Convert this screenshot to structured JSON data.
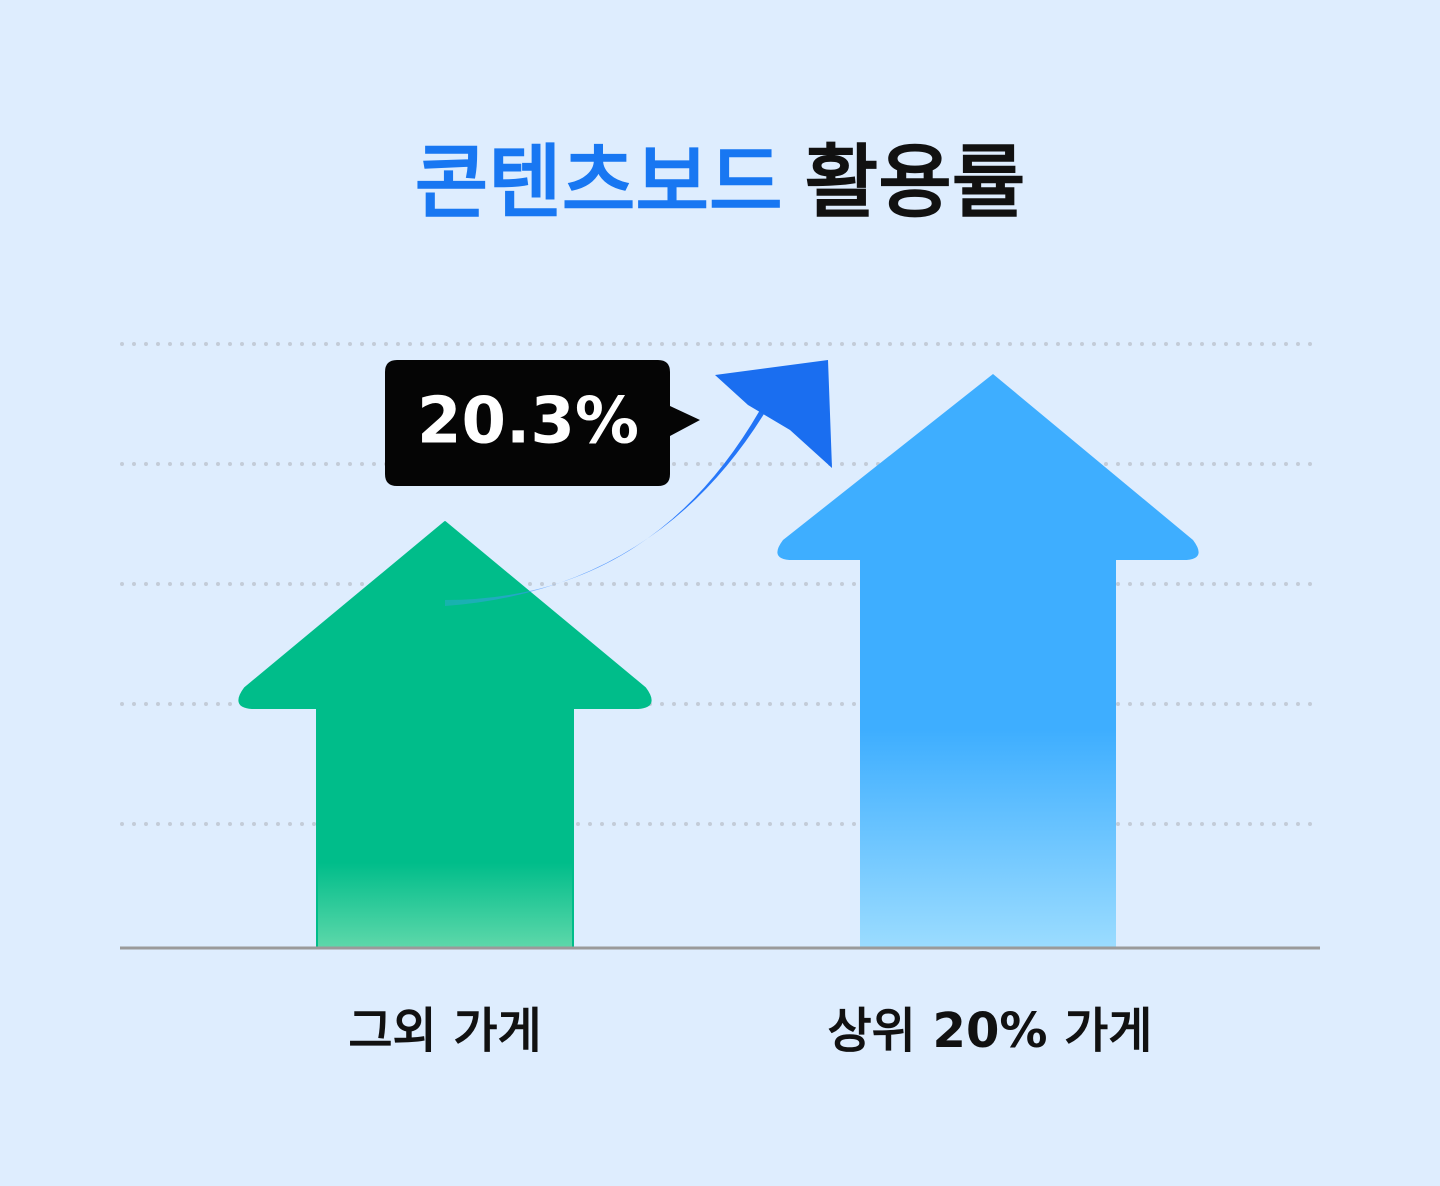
{
  "title": {
    "highlight": "콘텐츠보드",
    "rest": "활용률"
  },
  "badge": "20.3%",
  "labels": [
    "그외 가게",
    "상위 20% 가게"
  ]
}
